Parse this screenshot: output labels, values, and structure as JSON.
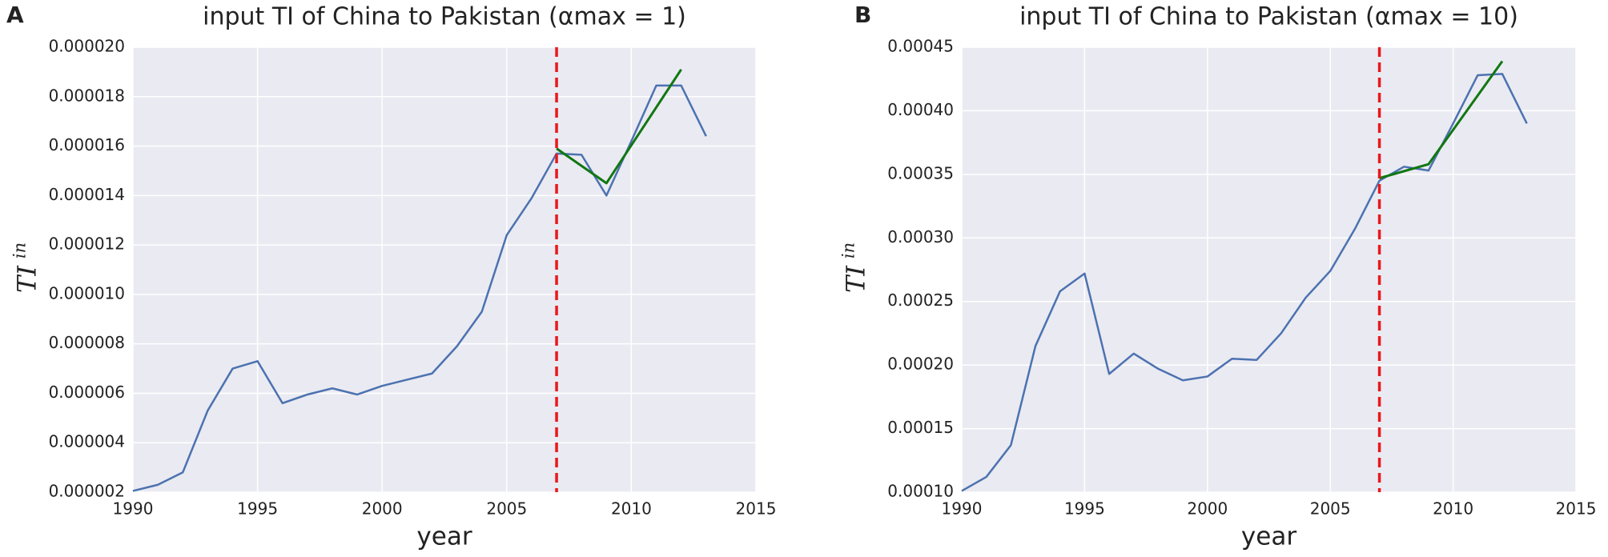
{
  "chart_data": [
    {
      "type": "line",
      "panel_label": "A",
      "title": "input TI of China to Pakistan (αmax = 1)",
      "xlabel": "year",
      "ylabel": "TI",
      "ylabel_superscript": "in",
      "x": [
        1990,
        1991,
        1992,
        1993,
        1994,
        1995,
        1996,
        1997,
        1998,
        1999,
        2000,
        2001,
        2002,
        2003,
        2004,
        2005,
        2006,
        2007,
        2008,
        2009,
        2010,
        2011,
        2012,
        2013
      ],
      "series": [
        {
          "color": "#4c72b0",
          "values": [
            2.05e-06,
            2.3e-06,
            2.8e-06,
            5.3e-06,
            7e-06,
            7.3e-06,
            5.6e-06,
            5.95e-06,
            6.2e-06,
            5.95e-06,
            6.3e-06,
            6.55e-06,
            6.8e-06,
            7.9e-06,
            9.3e-06,
            1.24e-05,
            1.39e-05,
            1.57e-05,
            1.565e-05,
            1.4e-05,
            1.62e-05,
            1.845e-05,
            1.845e-05,
            1.64e-05
          ]
        },
        {
          "color": "#117711",
          "x": [
            2007,
            2009,
            2012
          ],
          "values": [
            1.59e-05,
            1.45e-05,
            1.91e-05
          ]
        }
      ],
      "vline": {
        "x": 2007,
        "color": "#e8191c"
      },
      "xlim": [
        1990,
        2015
      ],
      "xticks": [
        1990,
        1995,
        2000,
        2005,
        2010,
        2015
      ],
      "ylim": [
        2e-06,
        2e-05
      ],
      "yticks": [
        {
          "value": 2e-06,
          "label": "0.000002"
        },
        {
          "value": 4e-06,
          "label": "0.000004"
        },
        {
          "value": 6e-06,
          "label": "0.000006"
        },
        {
          "value": 8e-06,
          "label": "0.000008"
        },
        {
          "value": 1e-05,
          "label": "0.000010"
        },
        {
          "value": 1.2e-05,
          "label": "0.000012"
        },
        {
          "value": 1.4e-05,
          "label": "0.000014"
        },
        {
          "value": 1.6e-05,
          "label": "0.000016"
        },
        {
          "value": 1.8e-05,
          "label": "0.000018"
        },
        {
          "value": 2e-05,
          "label": "0.000020"
        }
      ],
      "grid": true
    },
    {
      "type": "line",
      "panel_label": "B",
      "title": "input TI of China to Pakistan (αmax = 10)",
      "xlabel": "year",
      "ylabel": "TI",
      "ylabel_superscript": "in",
      "x": [
        1990,
        1991,
        1992,
        1993,
        1994,
        1995,
        1996,
        1997,
        1998,
        1999,
        2000,
        2001,
        2002,
        2003,
        2004,
        2005,
        2006,
        2007,
        2008,
        2009,
        2010,
        2011,
        2012,
        2013
      ],
      "series": [
        {
          "color": "#4c72b0",
          "values": [
            0.000101,
            0.000112,
            0.000137,
            0.000215,
            0.000258,
            0.000272,
            0.000193,
            0.000209,
            0.000197,
            0.000188,
            0.000191,
            0.000205,
            0.000204,
            0.000225,
            0.000253,
            0.000274,
            0.000307,
            0.000345,
            0.000356,
            0.000353,
            0.00039,
            0.000428,
            0.000429,
            0.00039
          ]
        },
        {
          "color": "#117711",
          "x": [
            2007,
            2009,
            2012
          ],
          "values": [
            0.000347,
            0.000358,
            0.000439
          ]
        }
      ],
      "vline": {
        "x": 2007,
        "color": "#e8191c"
      },
      "xlim": [
        1990,
        2015
      ],
      "xticks": [
        1990,
        1995,
        2000,
        2005,
        2010,
        2015
      ],
      "ylim": [
        0.0001,
        0.00045
      ],
      "yticks": [
        {
          "value": 0.0001,
          "label": "0.00010"
        },
        {
          "value": 0.00015,
          "label": "0.00015"
        },
        {
          "value": 0.0002,
          "label": "0.00020"
        },
        {
          "value": 0.00025,
          "label": "0.00025"
        },
        {
          "value": 0.0003,
          "label": "0.00030"
        },
        {
          "value": 0.00035,
          "label": "0.00035"
        },
        {
          "value": 0.0004,
          "label": "0.00040"
        },
        {
          "value": 0.00045,
          "label": "0.00045"
        }
      ],
      "grid": true
    }
  ]
}
